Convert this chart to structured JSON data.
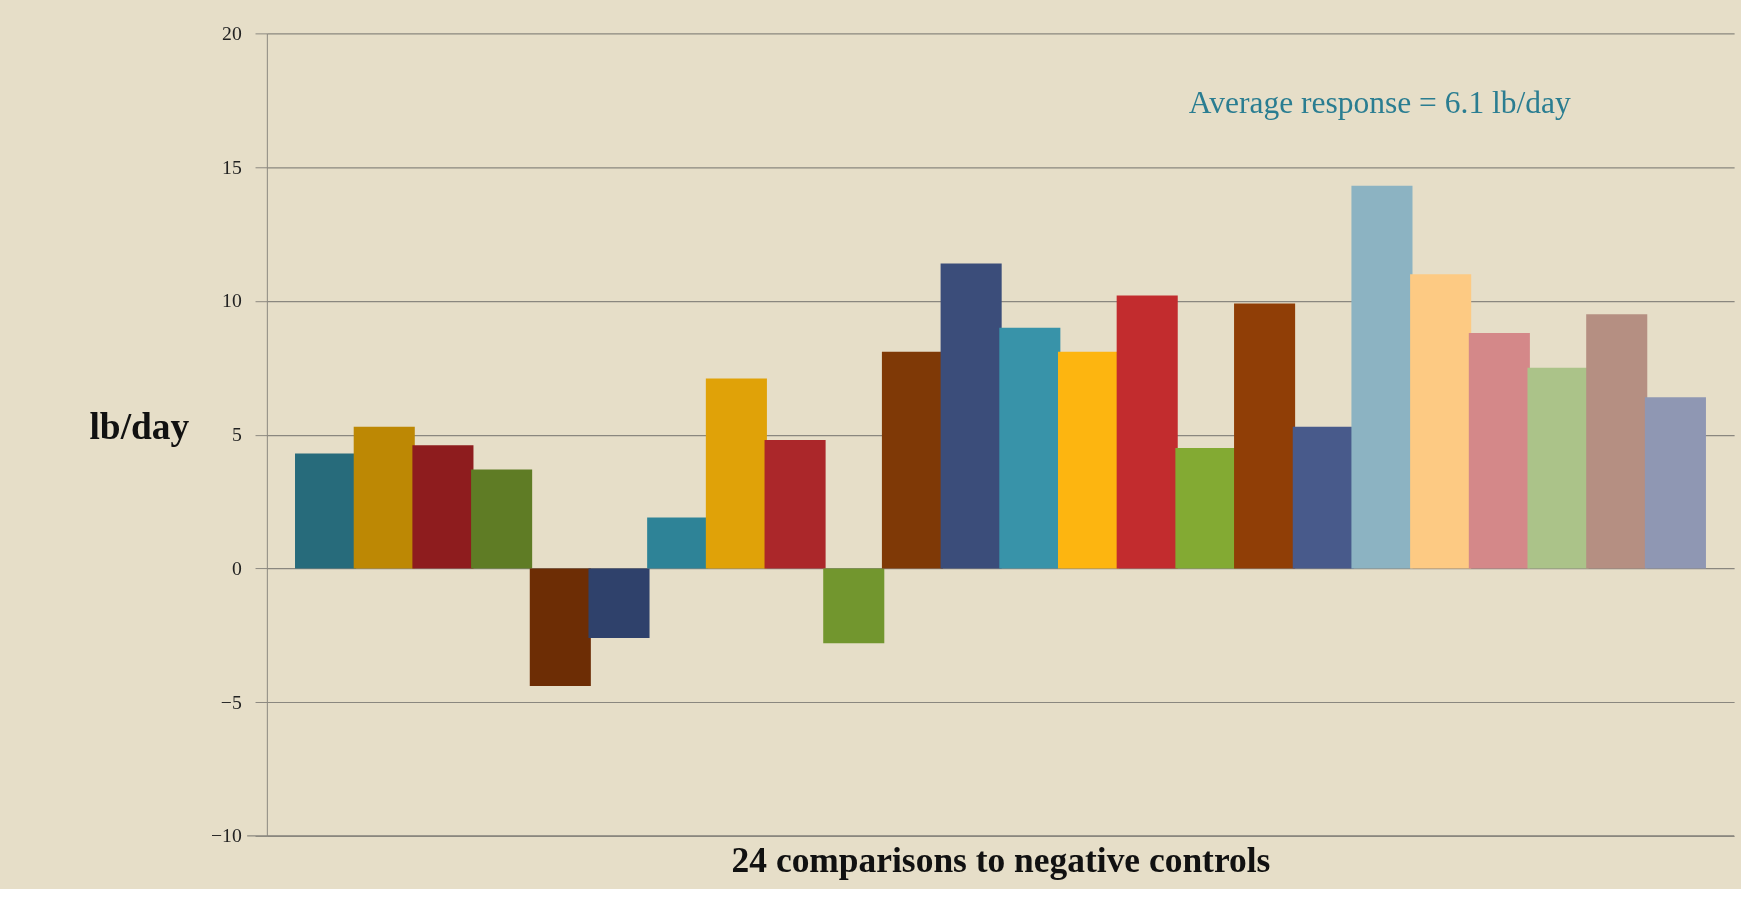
{
  "chart_data": {
    "type": "bar",
    "xlabel": "24 comparisons to negative controls",
    "ylabel": "lb/day",
    "categories": [
      null,
      null,
      null,
      null,
      null,
      null,
      null,
      null,
      null,
      null,
      null,
      null,
      null,
      null,
      null,
      null,
      null,
      null,
      null,
      null,
      null,
      null,
      null,
      null
    ],
    "values": [
      4.3,
      5.3,
      4.6,
      3.7,
      -4.4,
      -2.6,
      1.9,
      7.1,
      4.8,
      -2.8,
      8.1,
      11.4,
      9.0,
      8.1,
      10.2,
      4.5,
      9.9,
      5.3,
      14.3,
      11.0,
      8.8,
      7.5,
      9.5,
      6.4
    ],
    "colors": [
      "#276b7b",
      "#bd8804",
      "#8e1c1e",
      "#5f7c25",
      "#6d2d05",
      "#2f416b",
      "#2e8397",
      "#e0a208",
      "#ab272a",
      "#72962e",
      "#7f3906",
      "#3b4d7a",
      "#3893a9",
      "#fdb510",
      "#c22c2e",
      "#83aa33",
      "#903e06",
      "#485a8b",
      "#8cb3c2",
      "#fdca83",
      "#d48889",
      "#abc389",
      "#b58f82",
      "#8f97b3"
    ],
    "ylim": [
      -10,
      20
    ],
    "yticks": [
      -10,
      -5,
      0,
      5,
      10,
      15,
      20
    ],
    "grid": "y",
    "tick_labels": "y",
    "annotations": [
      "Average response = 6.1 lb/day"
    ]
  }
}
